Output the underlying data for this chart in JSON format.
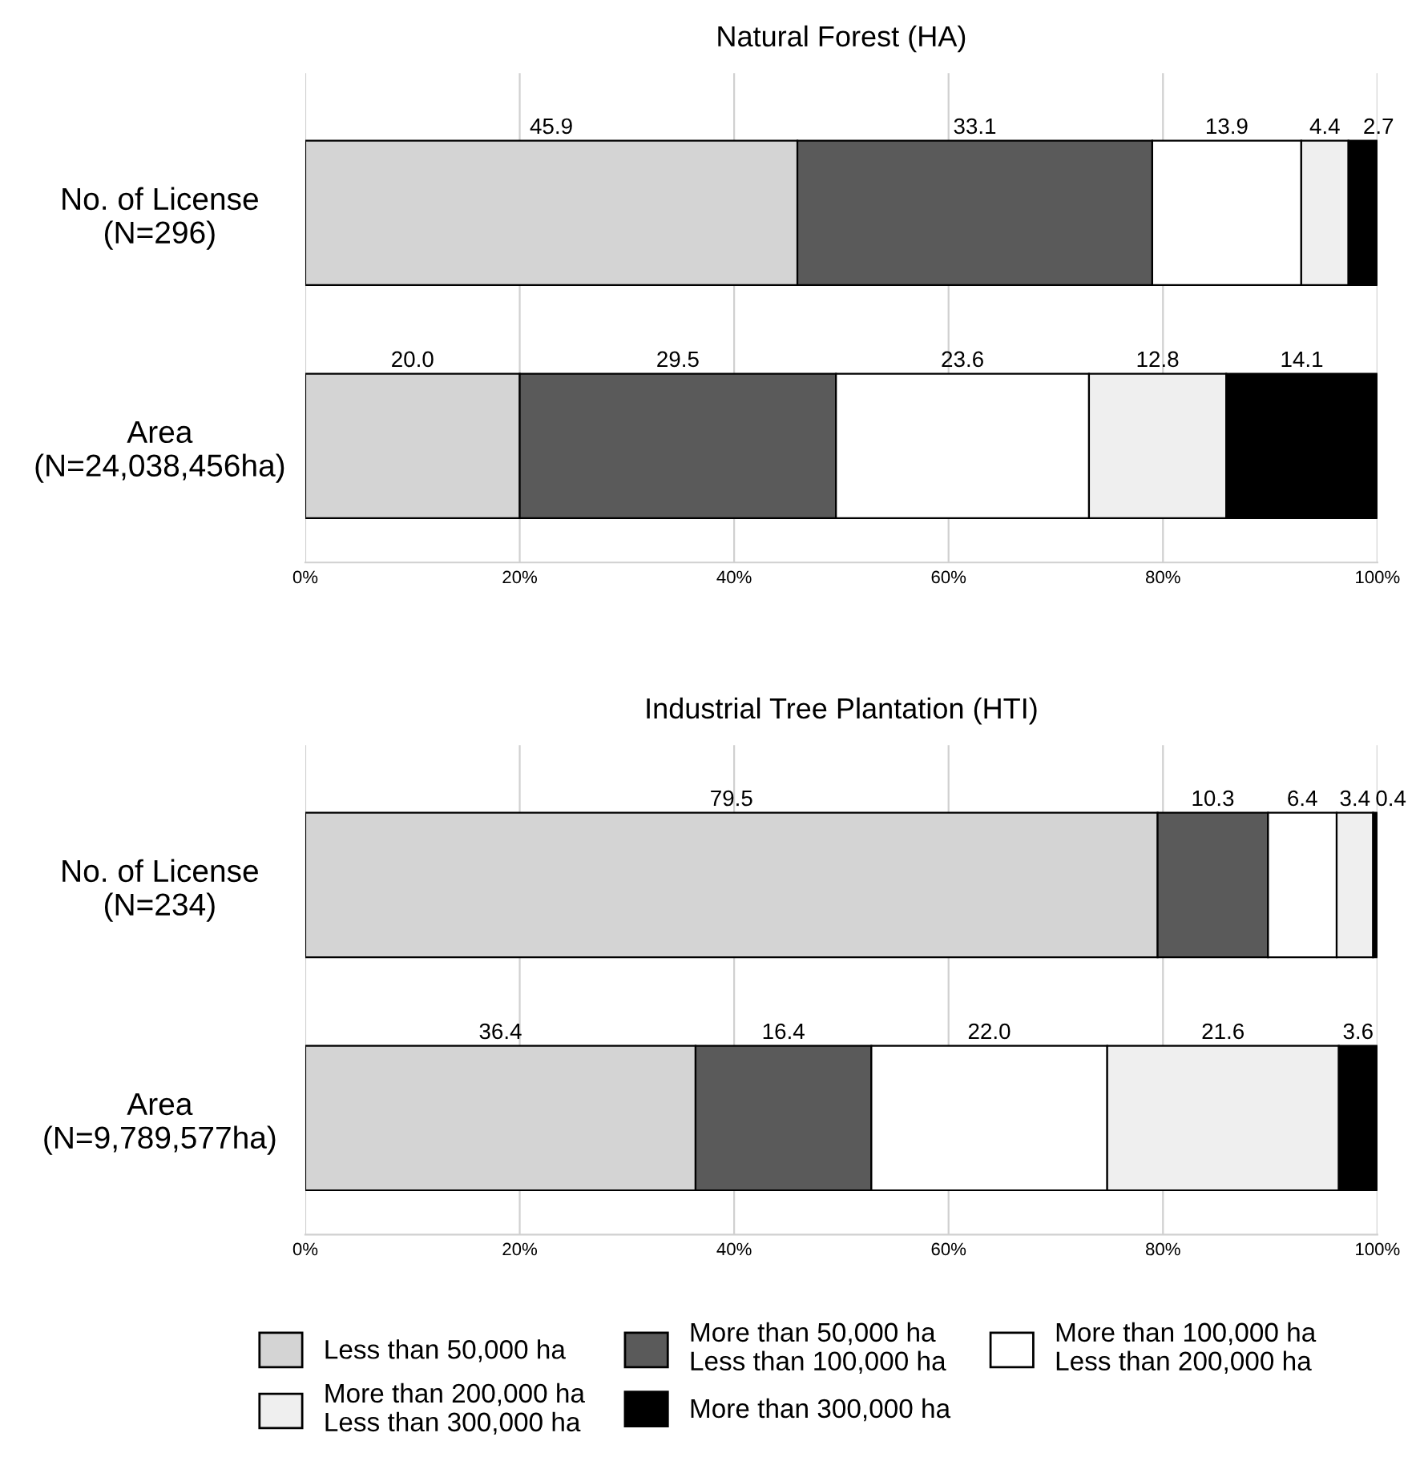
{
  "chart_data": [
    {
      "type": "bar",
      "orientation": "horizontal",
      "stacked": true,
      "title": "Natural Forest (HA)",
      "categories": [
        "No. of License\n(N=296)",
        "Area\n(N=24,038,456ha)"
      ],
      "series": [
        {
          "color": "#d4d4d4",
          "values": [
            45.9,
            20.0
          ],
          "value_labels": [
            "45.9",
            "20.0"
          ]
        },
        {
          "color": "#5a5a5a",
          "values": [
            33.1,
            29.5
          ],
          "value_labels": [
            "33.1",
            "29.5"
          ]
        },
        {
          "color": "#ffffff",
          "values": [
            13.9,
            23.6
          ],
          "value_labels": [
            "13.9",
            "23.6"
          ]
        },
        {
          "color": "#efefef",
          "values": [
            4.4,
            12.8
          ],
          "value_labels": [
            "4.4",
            "12.8"
          ]
        },
        {
          "color": "#000000",
          "values": [
            2.7,
            14.1
          ],
          "value_labels": [
            "2.7",
            "14.1"
          ]
        }
      ],
      "xlim": [
        0,
        100
      ],
      "xticks": [
        {
          "value": 0,
          "label": "0%"
        },
        {
          "value": 20,
          "label": "20%"
        },
        {
          "value": 40,
          "label": "40%"
        },
        {
          "value": 60,
          "label": "60%"
        },
        {
          "value": 80,
          "label": "80%"
        },
        {
          "value": 100,
          "label": "100%"
        }
      ],
      "grid": "x"
    },
    {
      "type": "bar",
      "orientation": "horizontal",
      "stacked": true,
      "title": "Industrial Tree Plantation (HTI)",
      "categories": [
        "No. of License\n(N=234)",
        "Area\n(N=9,789,577ha)"
      ],
      "series": [
        {
          "name": "Less than 50,000 ha",
          "color": "#d4d4d4",
          "values": [
            79.5,
            36.4
          ],
          "value_labels": [
            "79.5",
            "36.4"
          ]
        },
        {
          "name": "More than 50,000 ha\nLess than 100,000 ha",
          "color": "#5a5a5a",
          "values": [
            10.3,
            16.4
          ],
          "value_labels": [
            "10.3",
            "16.4"
          ]
        },
        {
          "name": "More than 100,000 ha\nLess than 200,000 ha",
          "color": "#ffffff",
          "values": [
            6.4,
            22.0
          ],
          "value_labels": [
            "6.4",
            "22.0"
          ]
        },
        {
          "name": "More than 200,000 ha\nLess than 300,000 ha",
          "color": "#efefef",
          "values": [
            3.4,
            21.6
          ],
          "value_labels": [
            "3.4",
            "21.6"
          ]
        },
        {
          "name": "More than 300,000 ha",
          "color": "#000000",
          "values": [
            0.4,
            3.6
          ],
          "value_labels": [
            "0.4",
            "3.6"
          ]
        }
      ],
      "xlim": [
        0,
        100
      ],
      "xticks": [
        {
          "value": 0,
          "label": "0%"
        },
        {
          "value": 20,
          "label": "20%"
        },
        {
          "value": 40,
          "label": "40%"
        },
        {
          "value": 60,
          "label": "60%"
        },
        {
          "value": 80,
          "label": "80%"
        },
        {
          "value": 100,
          "label": "100%"
        }
      ],
      "grid": "x",
      "legend": "bottom"
    }
  ]
}
